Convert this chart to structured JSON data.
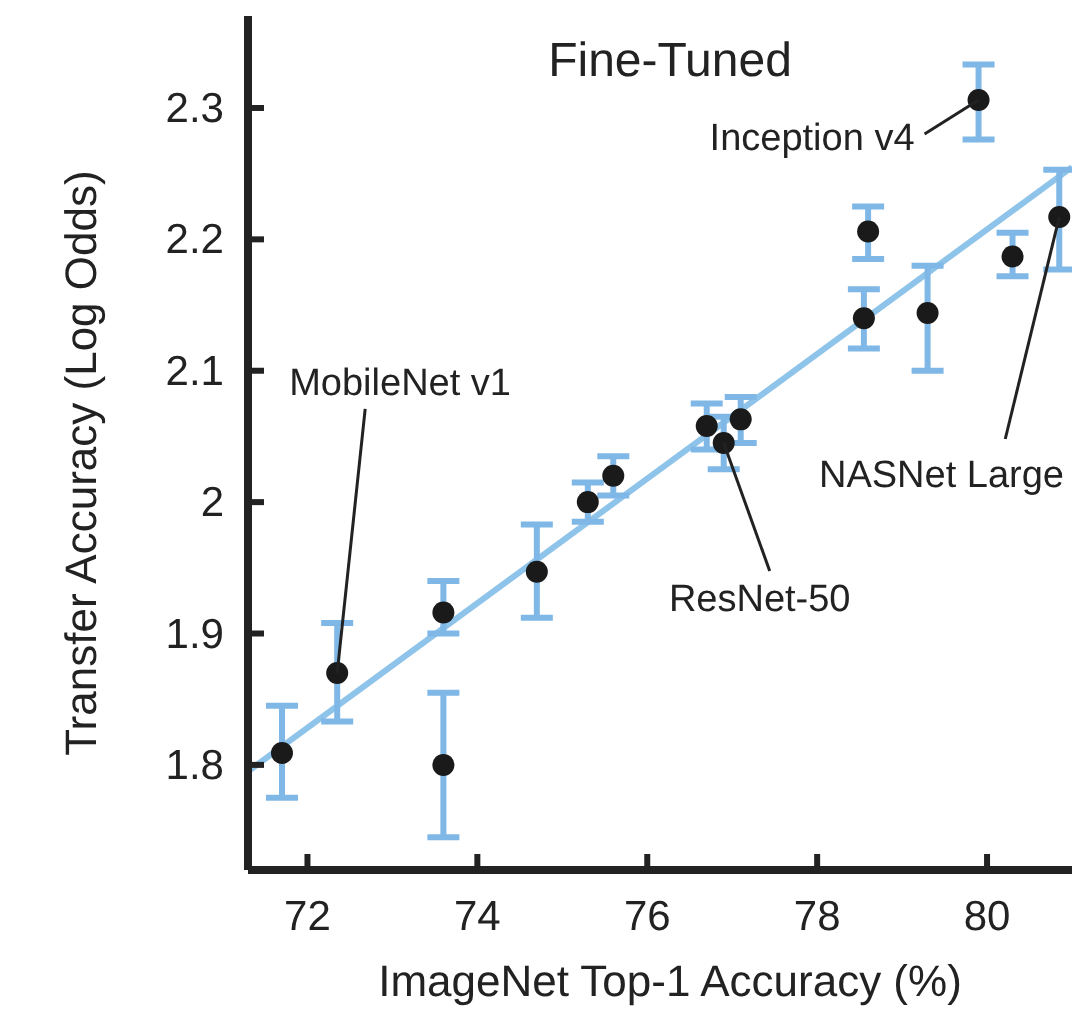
{
  "chart_data": {
    "type": "scatter",
    "title": "Fine-Tuned",
    "xlabel": "ImageNet Top-1 Accuracy (%)",
    "ylabel": "Transfer Accuracy (Log Odds)",
    "xlim": [
      71.3,
      81.0
    ],
    "ylim": [
      1.72,
      2.37
    ],
    "xticks": [
      72,
      74,
      76,
      78,
      80
    ],
    "yticks": [
      1.8,
      1.9,
      2.0,
      2.1,
      2.2,
      2.3
    ],
    "grid": false,
    "marker": "circle",
    "series": [
      {
        "type": "line",
        "marker": "none",
        "color": "#8ec3ea",
        "x": [
          71.3,
          81.0
        ],
        "values": [
          1.795,
          2.255
        ]
      },
      {
        "color": "#1a1a1a",
        "x": [
          71.7,
          72.35,
          73.6,
          73.6,
          74.7,
          75.3,
          75.6,
          76.7,
          76.9,
          77.1,
          78.55,
          78.6,
          79.3,
          79.9,
          80.3,
          80.85
        ],
        "values": [
          1.809,
          1.87,
          1.916,
          1.8,
          1.947,
          2.0,
          2.02,
          2.058,
          2.045,
          2.063,
          2.14,
          2.206,
          2.144,
          2.306,
          2.187,
          2.217
        ],
        "errors": [
          [
            1.775,
            1.845
          ],
          [
            1.833,
            1.908
          ],
          [
            1.9,
            1.94
          ],
          [
            1.745,
            1.855
          ],
          [
            1.912,
            1.983
          ],
          [
            1.985,
            2.015
          ],
          [
            2.005,
            2.035
          ],
          [
            2.04,
            2.075
          ],
          [
            2.025,
            2.065
          ],
          [
            2.045,
            2.08
          ],
          [
            2.117,
            2.162
          ],
          [
            2.185,
            2.225
          ],
          [
            2.1,
            2.18
          ],
          [
            2.276,
            2.333
          ],
          [
            2.172,
            2.205
          ],
          [
            2.177,
            2.253
          ]
        ]
      }
    ],
    "annotations": [
      {
        "text": "MobileNet v1",
        "x": 72.35,
        "y": 1.87
      },
      {
        "text": "Inception v4",
        "x": 79.9,
        "y": 2.306
      },
      {
        "text": "ResNet-50",
        "x": 76.9,
        "y": 2.045
      },
      {
        "text": "NASNet Large",
        "x": 80.85,
        "y": 2.217
      }
    ]
  }
}
